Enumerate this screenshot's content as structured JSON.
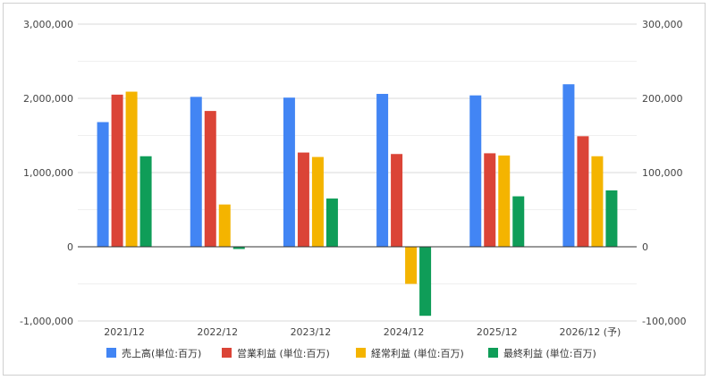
{
  "chart_data": {
    "type": "bar",
    "categories": [
      "2021/12",
      "2022/12",
      "2023/12",
      "2024/12",
      "2025/12",
      "2026/12 (予)"
    ],
    "left_axis": {
      "ylim": [
        -1000000,
        3000000
      ],
      "ticks": [
        -1000000,
        0,
        1000000,
        2000000,
        3000000
      ],
      "tick_labels": [
        "-1,000,000",
        "0",
        "1,000,000",
        "2,000,000",
        "3,000,000"
      ]
    },
    "right_axis": {
      "ylim": [
        -100000,
        300000
      ],
      "ticks": [
        -100000,
        0,
        100000,
        200000,
        300000
      ],
      "tick_labels": [
        "-100,000",
        "0",
        "100,000",
        "200,000",
        "300,000"
      ]
    },
    "series": [
      {
        "name": "売上高(単位:百万)",
        "color": "#4285f4",
        "axis": "left",
        "values": [
          1680000,
          2020000,
          2010000,
          2060000,
          2040000,
          2190000
        ]
      },
      {
        "name": "営業利益 (単位:百万)",
        "color": "#db4437",
        "axis": "right",
        "values": [
          205000,
          183000,
          127000,
          125000,
          126000,
          149000
        ]
      },
      {
        "name": "経常利益 (単位:百万)",
        "color": "#f4b400",
        "axis": "right",
        "values": [
          209000,
          57000,
          121000,
          -50000,
          123000,
          122000
        ]
      },
      {
        "name": "最終利益 (単位:百万)",
        "color": "#0f9d58",
        "axis": "right",
        "values": [
          122000,
          -3000,
          65000,
          -93000,
          68000,
          76000
        ]
      }
    ],
    "grid": true,
    "legend_position": "bottom"
  }
}
